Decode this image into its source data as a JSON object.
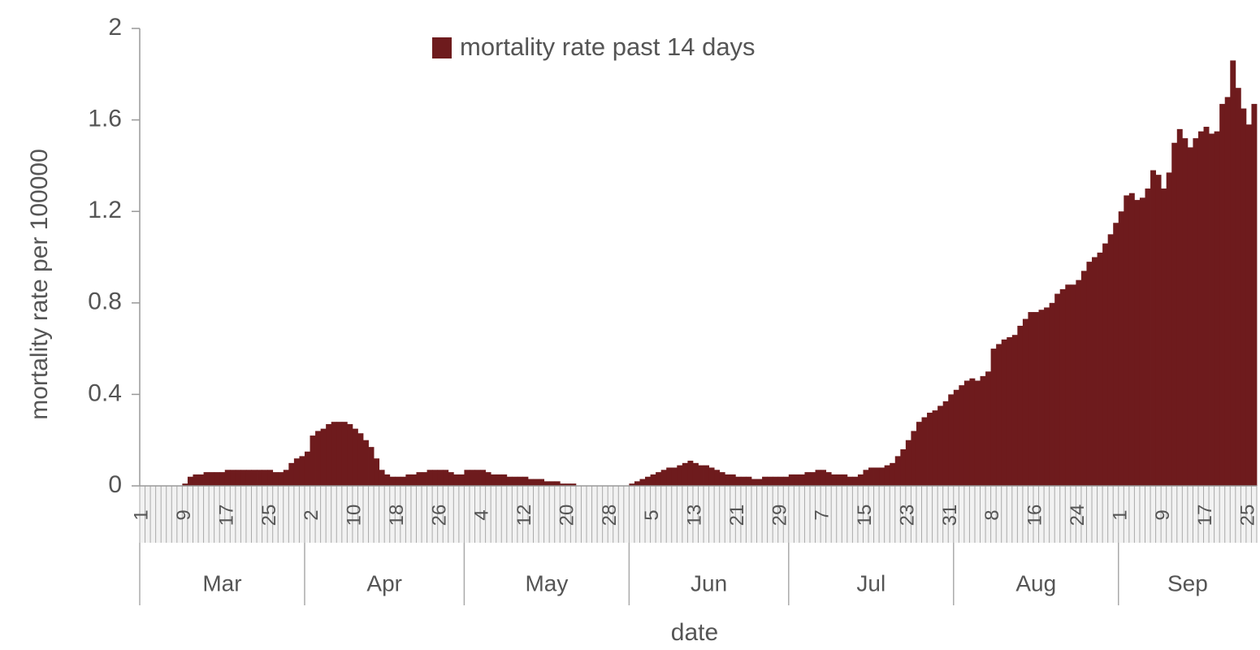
{
  "chart_data": {
    "type": "bar",
    "series": [
      {
        "name": "mortality rate past 14 days",
        "color": "#6e1b1d",
        "values": [
          0,
          0,
          0,
          0,
          0,
          0,
          0,
          0,
          0.01,
          0.04,
          0.05,
          0.05,
          0.06,
          0.06,
          0.06,
          0.06,
          0.07,
          0.07,
          0.07,
          0.07,
          0.07,
          0.07,
          0.07,
          0.07,
          0.07,
          0.06,
          0.06,
          0.07,
          0.1,
          0.12,
          0.13,
          0.15,
          0.22,
          0.24,
          0.25,
          0.27,
          0.28,
          0.28,
          0.28,
          0.27,
          0.25,
          0.23,
          0.2,
          0.17,
          0.12,
          0.07,
          0.05,
          0.04,
          0.04,
          0.04,
          0.05,
          0.05,
          0.06,
          0.06,
          0.07,
          0.07,
          0.07,
          0.07,
          0.06,
          0.05,
          0.05,
          0.07,
          0.07,
          0.07,
          0.07,
          0.06,
          0.05,
          0.05,
          0.05,
          0.04,
          0.04,
          0.04,
          0.04,
          0.03,
          0.03,
          0.03,
          0.02,
          0.02,
          0.02,
          0.01,
          0.01,
          0.01,
          0,
          0,
          0,
          0,
          0,
          0,
          0,
          0,
          0,
          0,
          0.01,
          0.02,
          0.03,
          0.04,
          0.05,
          0.06,
          0.07,
          0.08,
          0.08,
          0.09,
          0.1,
          0.11,
          0.1,
          0.09,
          0.09,
          0.08,
          0.07,
          0.06,
          0.05,
          0.05,
          0.04,
          0.04,
          0.04,
          0.03,
          0.03,
          0.04,
          0.04,
          0.04,
          0.04,
          0.04,
          0.05,
          0.05,
          0.05,
          0.06,
          0.06,
          0.07,
          0.07,
          0.06,
          0.05,
          0.05,
          0.05,
          0.04,
          0.04,
          0.05,
          0.07,
          0.08,
          0.08,
          0.08,
          0.09,
          0.1,
          0.13,
          0.16,
          0.2,
          0.24,
          0.28,
          0.3,
          0.32,
          0.33,
          0.35,
          0.37,
          0.4,
          0.42,
          0.44,
          0.46,
          0.47,
          0.46,
          0.48,
          0.5,
          0.6,
          0.62,
          0.64,
          0.65,
          0.66,
          0.7,
          0.73,
          0.76,
          0.76,
          0.77,
          0.78,
          0.8,
          0.84,
          0.86,
          0.88,
          0.88,
          0.9,
          0.94,
          0.98,
          1.0,
          1.02,
          1.06,
          1.1,
          1.15,
          1.2,
          1.27,
          1.28,
          1.25,
          1.26,
          1.3,
          1.38,
          1.36,
          1.3,
          1.37,
          1.5,
          1.56,
          1.52,
          1.48,
          1.52,
          1.55,
          1.57,
          1.54,
          1.55,
          1.67,
          1.7,
          1.86,
          1.74,
          1.65,
          1.58,
          1.67
        ]
      }
    ],
    "categories": [
      "1",
      null,
      null,
      null,
      null,
      null,
      null,
      null,
      "9",
      null,
      null,
      null,
      null,
      null,
      null,
      null,
      "17",
      null,
      null,
      null,
      null,
      null,
      null,
      null,
      "25",
      null,
      null,
      null,
      null,
      null,
      null,
      null,
      "2",
      null,
      null,
      null,
      null,
      null,
      null,
      null,
      "10",
      null,
      null,
      null,
      null,
      null,
      null,
      null,
      "18",
      null,
      null,
      null,
      null,
      null,
      null,
      null,
      "26",
      null,
      null,
      null,
      null,
      null,
      null,
      null,
      "4",
      null,
      null,
      null,
      null,
      null,
      null,
      null,
      "12",
      null,
      null,
      null,
      null,
      null,
      null,
      null,
      "20",
      null,
      null,
      null,
      null,
      null,
      null,
      null,
      "28",
      null,
      null,
      null,
      null,
      null,
      null,
      null,
      "5",
      null,
      null,
      null,
      null,
      null,
      null,
      null,
      "13",
      null,
      null,
      null,
      null,
      null,
      null,
      null,
      "21",
      null,
      null,
      null,
      null,
      null,
      null,
      null,
      "29",
      null,
      null,
      null,
      null,
      null,
      null,
      null,
      "7",
      null,
      null,
      null,
      null,
      null,
      null,
      null,
      "15",
      null,
      null,
      null,
      null,
      null,
      null,
      null,
      "23",
      null,
      null,
      null,
      null,
      null,
      null,
      null,
      "31",
      null,
      null,
      null,
      null,
      null,
      null,
      null,
      "8",
      null,
      null,
      null,
      null,
      null,
      null,
      null,
      "16",
      null,
      null,
      null,
      null,
      null,
      null,
      null,
      "24",
      null,
      null,
      null,
      null,
      null,
      null,
      null,
      "1",
      null,
      null,
      null,
      null,
      null,
      null,
      null,
      "9",
      null,
      null,
      null,
      null,
      null,
      null,
      null,
      "17",
      null,
      null,
      null,
      null,
      null,
      null,
      null,
      "25",
      null
    ],
    "months": [
      "Mar",
      "Apr",
      "May",
      "Jun",
      "Jul",
      "Aug",
      "Sep"
    ],
    "xlabel": "date",
    "ylabel": "mortality rate per 100000",
    "ylim": [
      0,
      2
    ],
    "yticks": [
      0,
      0.4,
      0.8,
      1.2,
      1.6,
      2
    ],
    "grid": false,
    "legend": "top"
  }
}
